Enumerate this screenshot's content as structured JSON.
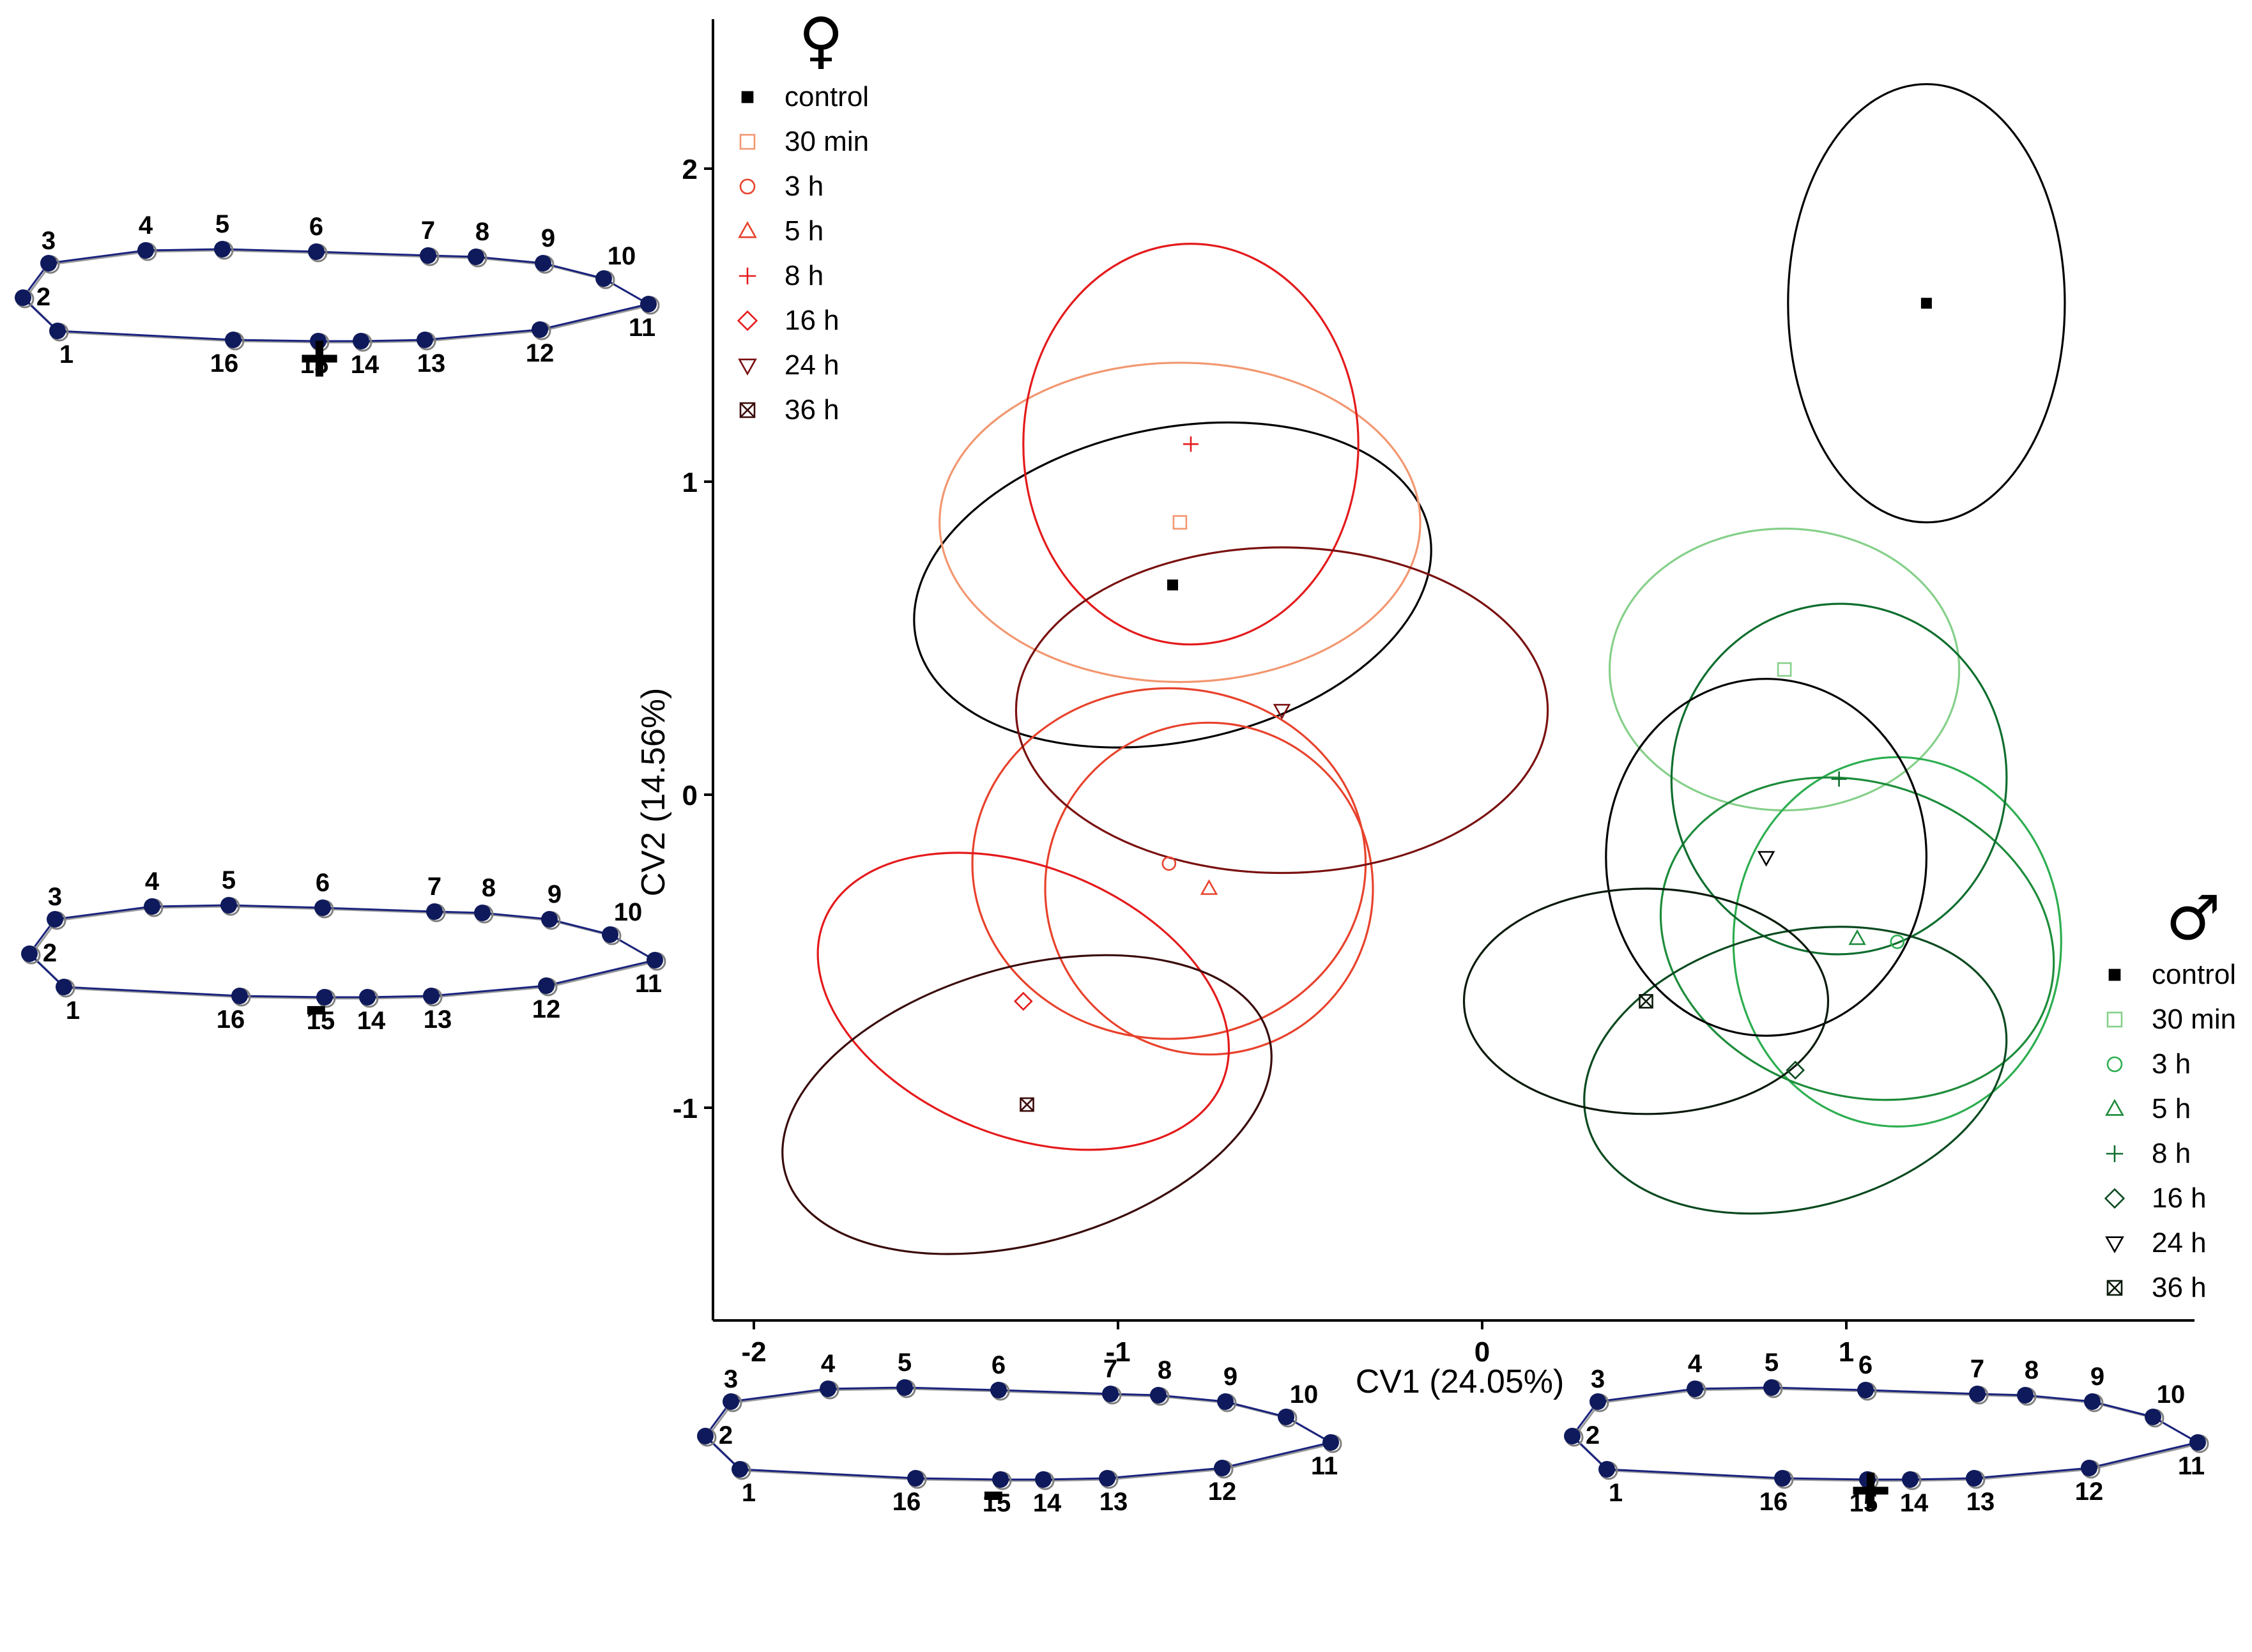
{
  "chart_data": {
    "type": "scatter",
    "xlabel": "CV1 (24.05%)",
    "ylabel": "CV2 (14.56%)",
    "xlim": [
      -2.1,
      1.95
    ],
    "ylim": [
      -1.68,
      2.45
    ],
    "xticks": [
      -2,
      -1,
      0,
      1
    ],
    "yticks": [
      -1,
      0,
      1,
      2
    ],
    "xtick_labels": [
      "-2",
      "-1",
      "0",
      "1"
    ],
    "ytick_labels": [
      "-1",
      "0",
      "1",
      "2"
    ],
    "groups": [
      {
        "name": "female",
        "symbol": "♀",
        "legend_position": "top-left",
        "series": [
          {
            "name": "control",
            "marker": "filled-square",
            "color": "#000000",
            "x": -0.85,
            "y": 0.67,
            "ellipse": {
              "rx": 0.72,
              "ry": 0.5,
              "angle": 12
            }
          },
          {
            "name": "30 min",
            "marker": "square",
            "color": "#F29770",
            "x": -0.83,
            "y": 0.87,
            "ellipse": {
              "rx": 0.66,
              "ry": 0.51,
              "angle": 0
            }
          },
          {
            "name": "3 h",
            "marker": "circle",
            "color": "#E8422C",
            "x": -0.86,
            "y": -0.22,
            "ellipse": {
              "rx": 0.54,
              "ry": 0.56,
              "angle": 0
            }
          },
          {
            "name": "5 h",
            "marker": "triangle",
            "color": "#E8422C",
            "x": -0.75,
            "y": -0.3,
            "ellipse": {
              "rx": 0.45,
              "ry": 0.53,
              "angle": 2
            }
          },
          {
            "name": "8 h",
            "marker": "plus",
            "color": "#E41A1C",
            "x": -0.8,
            "y": 1.12,
            "ellipse": {
              "rx": 0.46,
              "ry": 0.64,
              "angle": 0
            }
          },
          {
            "name": "16 h",
            "marker": "diamond",
            "color": "#E41A1C",
            "x": -1.26,
            "y": -0.66,
            "ellipse": {
              "rx": 0.59,
              "ry": 0.43,
              "angle": -22
            }
          },
          {
            "name": "24 h",
            "marker": "triangle-down",
            "color": "#7A1010",
            "x": -0.55,
            "y": 0.27,
            "ellipse": {
              "rx": 0.73,
              "ry": 0.52,
              "angle": 0
            }
          },
          {
            "name": "36 h",
            "marker": "square-x",
            "color": "#3A0A0A",
            "x": -1.25,
            "y": -0.99,
            "ellipse": {
              "rx": 0.69,
              "ry": 0.44,
              "angle": 16
            }
          }
        ]
      },
      {
        "name": "male",
        "symbol": "♂",
        "legend_position": "right",
        "series": [
          {
            "name": "control",
            "marker": "filled-square",
            "color": "#000000",
            "x": 1.22,
            "y": 1.57,
            "ellipse": {
              "rx": 0.38,
              "ry": 0.7,
              "angle": 0
            }
          },
          {
            "name": "30 min",
            "marker": "square",
            "color": "#86D08A",
            "x": 0.83,
            "y": 0.4,
            "ellipse": {
              "rx": 0.48,
              "ry": 0.45,
              "angle": 0
            }
          },
          {
            "name": "3 h",
            "marker": "circle",
            "color": "#2DAE50",
            "x": 1.14,
            "y": -0.47,
            "ellipse": {
              "rx": 0.45,
              "ry": 0.59,
              "angle": 0
            }
          },
          {
            "name": "5 h",
            "marker": "triangle",
            "color": "#1D8C3B",
            "x": 1.03,
            "y": -0.46,
            "ellipse": {
              "rx": 0.55,
              "ry": 0.5,
              "angle": -18
            }
          },
          {
            "name": "8 h",
            "marker": "plus",
            "color": "#0E6E2E",
            "x": 0.98,
            "y": 0.05,
            "ellipse": {
              "rx": 0.46,
              "ry": 0.56,
              "angle": -4
            }
          },
          {
            "name": "16 h",
            "marker": "diamond",
            "color": "#0A4A1F",
            "x": 0.86,
            "y": -0.88,
            "ellipse": {
              "rx": 0.59,
              "ry": 0.44,
              "angle": 14
            }
          },
          {
            "name": "24 h",
            "marker": "triangle-down",
            "color": "#000000",
            "x": 0.78,
            "y": -0.2,
            "ellipse": {
              "rx": 0.44,
              "ry": 0.57,
              "angle": 0
            }
          },
          {
            "name": "36 h",
            "marker": "square-x",
            "color": "#0B1A0B",
            "x": 0.45,
            "y": -0.66,
            "ellipse": {
              "rx": 0.5,
              "ry": 0.36,
              "angle": 0
            }
          }
        ]
      }
    ],
    "shape_panels": [
      {
        "name": "cv2-positive",
        "sign": "+"
      },
      {
        "name": "cv2-negative",
        "sign": "-"
      },
      {
        "name": "cv1-negative",
        "sign": "-"
      },
      {
        "name": "cv1-positive",
        "sign": "+"
      }
    ],
    "landmark_labels": [
      "1",
      "2",
      "3",
      "4",
      "5",
      "6",
      "7",
      "8",
      "9",
      "10",
      "11",
      "12",
      "13",
      "14",
      "15",
      "16"
    ]
  },
  "colors": {
    "outline": "#1A237E",
    "landmark": "#0F1A5C",
    "reference_landmark": "#808080",
    "axis": "#000000"
  }
}
